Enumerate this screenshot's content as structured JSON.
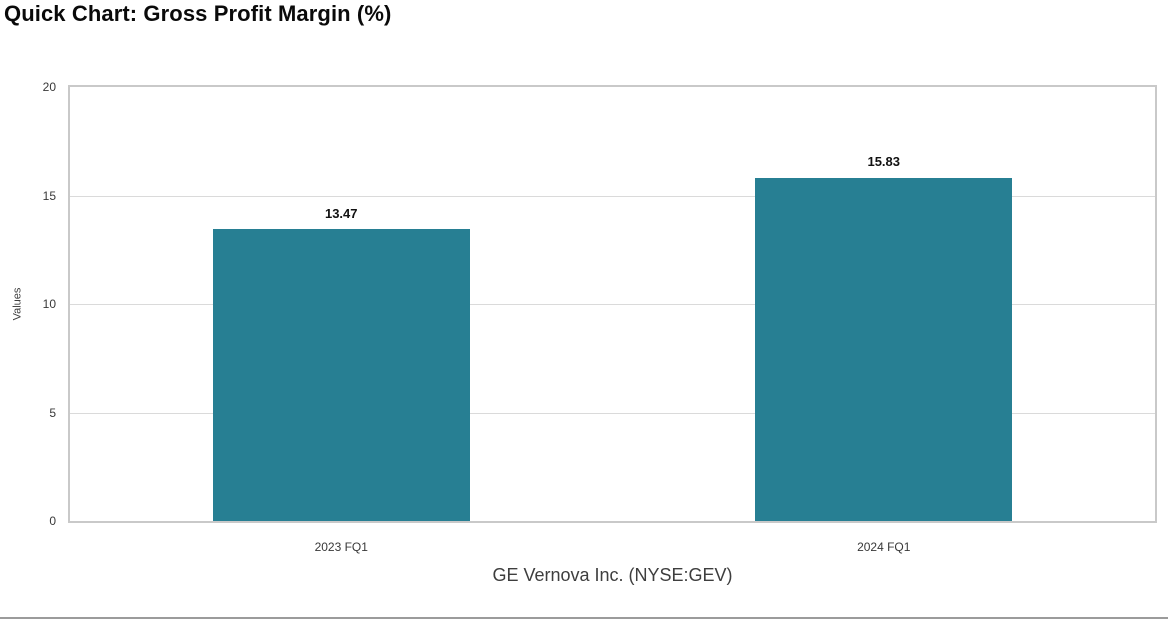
{
  "chart_data": {
    "type": "bar",
    "title": "Quick Chart: Gross Profit Margin (%)",
    "categories": [
      "2023 FQ1",
      "2024 FQ1"
    ],
    "values": [
      13.47,
      15.83
    ],
    "value_labels": [
      "13.47",
      "15.83"
    ],
    "xlabel": "GE Vernova Inc. (NYSE:GEV)",
    "ylabel": "Values",
    "ylim": [
      0,
      20
    ],
    "yticks": [
      0,
      5,
      10,
      15,
      20
    ],
    "grid": true,
    "legend": "none",
    "bar_color": "#277F93"
  },
  "colors": {
    "bar": "#277F93",
    "plot_border": "#c9c9c9",
    "gridline": "#dadada",
    "tick_text": "#383838",
    "axis_title_text": "#3e3e3e",
    "bottom_divider": "#9b9b9b",
    "background": "#ffffff"
  }
}
